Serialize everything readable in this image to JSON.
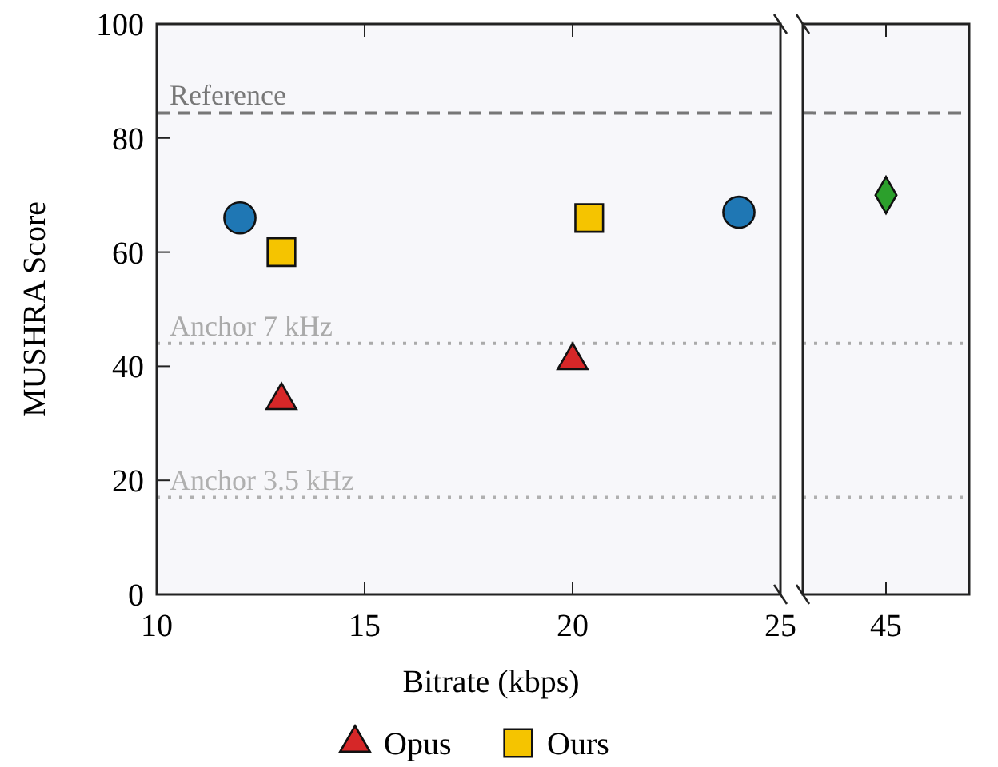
{
  "chart_data": [
    {
      "type": "scatter",
      "xlabel": "Bitrate (kbps)",
      "ylabel": "MUSHRA Score",
      "xlim": [
        10,
        25
      ],
      "xticks": [
        10,
        15,
        20,
        25
      ],
      "ylim": [
        0,
        100
      ],
      "yticks": [
        0,
        20,
        40,
        60,
        80,
        100
      ],
      "grid": false,
      "legend": "bottom",
      "series": [
        {
          "name": "Opus",
          "color": "#d62728",
          "marker": "triangle",
          "x": [
            13,
            20
          ],
          "values": [
            34,
            41
          ]
        },
        {
          "color": "#1f77b4",
          "marker": "circle",
          "x": [
            12,
            24
          ],
          "values": [
            66,
            67
          ]
        },
        {
          "name": "Ours",
          "color": "#f5c400",
          "marker": "square",
          "x": [
            13,
            20.4
          ],
          "values": [
            60,
            66
          ]
        }
      ],
      "ref_lines": [
        {
          "axis": "y",
          "value": 84.4,
          "label": "Reference",
          "color": "#777777",
          "line_style": "dashed"
        },
        {
          "axis": "y",
          "value": 44,
          "label": "Anchor 7 kHz",
          "color": "#aaaaaa",
          "line_style": "dotted"
        },
        {
          "axis": "y",
          "value": 17,
          "label": "Anchor 3.5 kHz",
          "color": "#b0b0b0",
          "line_style": "dotted"
        }
      ]
    },
    {
      "type": "scatter",
      "categories": [
        "45"
      ],
      "ylim": [
        0,
        100
      ],
      "yticks": [
        0,
        20,
        40,
        60,
        80,
        100
      ],
      "tick_labels": "x",
      "series": [
        {
          "color": "#2ca02c",
          "marker": "diamond",
          "x": [
            "45"
          ],
          "values": [
            70
          ]
        }
      ],
      "ref_lines": [
        {
          "axis": "y",
          "value": 84.4,
          "color": "#777777",
          "line_style": "dashed"
        },
        {
          "axis": "y",
          "value": 44,
          "color": "#aaaaaa",
          "line_style": "dotted"
        },
        {
          "axis": "y",
          "value": 17,
          "color": "#b0b0b0",
          "line_style": "dotted"
        }
      ]
    }
  ]
}
